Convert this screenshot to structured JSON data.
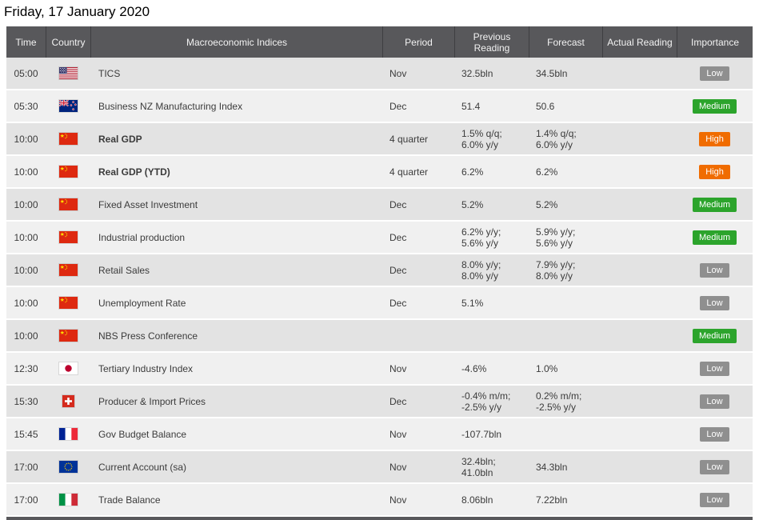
{
  "page": {
    "title": "Friday, 17 January 2020"
  },
  "table": {
    "columns": [
      "Time",
      "Country",
      "Macroeconomic Indices",
      "Period",
      "Previous\nReading",
      "Forecast",
      "Actual Reading",
      "Importance"
    ],
    "importance_levels": {
      "Low": "#8f8f8f",
      "Medium": "#2ca42c",
      "High": "#f06c00"
    },
    "rows": [
      {
        "time": "05:00",
        "country": "usa",
        "index": "TICS",
        "bold": false,
        "period": "Nov",
        "previous": "32.5bln",
        "forecast": "34.5bln",
        "actual": "",
        "importance": "Low"
      },
      {
        "time": "05:30",
        "country": "new-zealand",
        "index": "Business NZ Manufacturing Index",
        "bold": false,
        "period": "Dec",
        "previous": "51.4",
        "forecast": "50.6",
        "actual": "",
        "importance": "Medium"
      },
      {
        "time": "10:00",
        "country": "china",
        "index": "Real GDP",
        "bold": true,
        "period": "4 quarter",
        "previous": "1.5% q/q;\n6.0% y/y",
        "forecast": "1.4% q/q;\n6.0% y/y",
        "actual": "",
        "importance": "High"
      },
      {
        "time": "10:00",
        "country": "china",
        "index": "Real GDP (YTD)",
        "bold": true,
        "period": "4 quarter",
        "previous": "6.2%",
        "forecast": "6.2%",
        "actual": "",
        "importance": "High"
      },
      {
        "time": "10:00",
        "country": "china",
        "index": "Fixed Asset Investment",
        "bold": false,
        "period": "Dec",
        "previous": "5.2%",
        "forecast": "5.2%",
        "actual": "",
        "importance": "Medium"
      },
      {
        "time": "10:00",
        "country": "china",
        "index": "Industrial production",
        "bold": false,
        "period": "Dec",
        "previous": "6.2% y/y;\n5.6% y/y",
        "forecast": "5.9% y/y;\n5.6% y/y",
        "actual": "",
        "importance": "Medium"
      },
      {
        "time": "10:00",
        "country": "china",
        "index": "Retail Sales",
        "bold": false,
        "period": "Dec",
        "previous": "8.0% y/y;\n8.0% y/y",
        "forecast": "7.9% y/y;\n8.0% y/y",
        "actual": "",
        "importance": "Low"
      },
      {
        "time": "10:00",
        "country": "china",
        "index": "Unemployment Rate",
        "bold": false,
        "period": "Dec",
        "previous": "5.1%",
        "forecast": "",
        "actual": "",
        "importance": "Low"
      },
      {
        "time": "10:00",
        "country": "china",
        "index": "NBS Press Conference",
        "bold": false,
        "period": "",
        "previous": "",
        "forecast": "",
        "actual": "",
        "importance": "Medium"
      },
      {
        "time": "12:30",
        "country": "japan",
        "index": "Tertiary Industry Index",
        "bold": false,
        "period": "Nov",
        "previous": "-4.6%",
        "forecast": "1.0%",
        "actual": "",
        "importance": "Low"
      },
      {
        "time": "15:30",
        "country": "switzerland",
        "index": "Producer & Import Prices",
        "bold": false,
        "period": "Dec",
        "previous": "-0.4% m/m;\n-2.5% y/y",
        "forecast": "0.2% m/m;\n-2.5% y/y",
        "actual": "",
        "importance": "Low"
      },
      {
        "time": "15:45",
        "country": "france",
        "index": "Gov Budget Balance",
        "bold": false,
        "period": "Nov",
        "previous": "-107.7bln",
        "forecast": "",
        "actual": "",
        "importance": "Low"
      },
      {
        "time": "17:00",
        "country": "european-union",
        "index": "Current Account (sa)",
        "bold": false,
        "period": "Nov",
        "previous": "32.4bln;\n41.0bln",
        "forecast": "34.3bln",
        "actual": "",
        "importance": "Low"
      },
      {
        "time": "17:00",
        "country": "italy",
        "index": "Trade Balance",
        "bold": false,
        "period": "Nov",
        "previous": "8.06bln",
        "forecast": "7.22bln",
        "actual": "",
        "importance": "Low"
      }
    ]
  }
}
